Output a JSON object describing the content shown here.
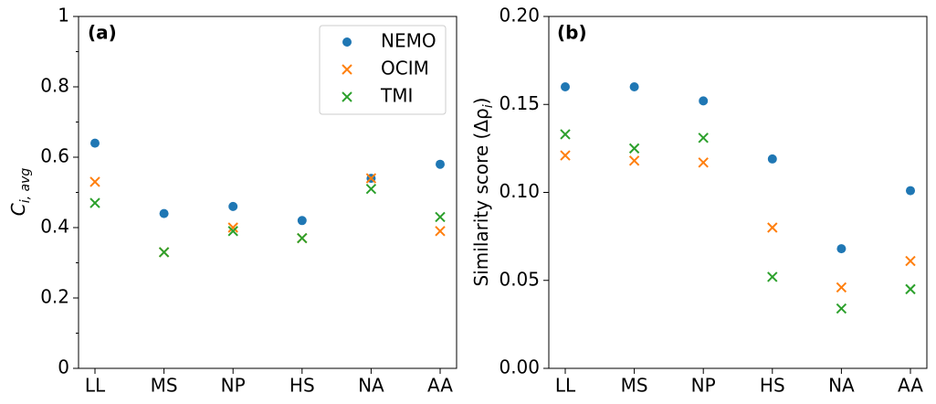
{
  "legend": {
    "entries": [
      {
        "name": "NEMO",
        "color": "#1f77b4",
        "marker": "circle"
      },
      {
        "name": "OCIM",
        "color": "#ff7f0e",
        "marker": "x"
      },
      {
        "name": "TMI",
        "color": "#2ca02c",
        "marker": "x"
      }
    ],
    "placement": "top-right of panel (a)"
  },
  "chart_data": [
    {
      "type": "scatter",
      "panel": "(a)",
      "categories": [
        "LL",
        "MS",
        "NP",
        "HS",
        "NA",
        "AA"
      ],
      "ylabel_main": "C",
      "ylabel_sub": "i, avg",
      "ylim": [
        0,
        1
      ],
      "yticks": [
        "0",
        "0.2",
        "0.4",
        "0.6",
        "0.8",
        "1"
      ],
      "ytick_values": [
        0,
        0.2,
        0.4,
        0.6,
        0.8,
        1
      ],
      "yminor_ticks": [
        0.1,
        0.3,
        0.5,
        0.7,
        0.9
      ],
      "grid": false,
      "series": [
        {
          "name": "NEMO",
          "values": [
            0.64,
            0.44,
            0.46,
            0.42,
            0.54,
            0.58
          ]
        },
        {
          "name": "OCIM",
          "values": [
            0.53,
            0.33,
            0.4,
            0.37,
            0.54,
            0.39
          ]
        },
        {
          "name": "TMI",
          "values": [
            0.47,
            0.33,
            0.39,
            0.37,
            0.51,
            0.43
          ]
        }
      ]
    },
    {
      "type": "scatter",
      "panel": "(b)",
      "categories": [
        "LL",
        "MS",
        "NP",
        "HS",
        "NA",
        "AA"
      ],
      "ylabel_main": "Similarity score (Δρ",
      "ylabel_sub": "i",
      "ylabel_end": ")",
      "ylim": [
        0,
        0.2
      ],
      "yticks": [
        "0.00",
        "0.05",
        "0.10",
        "0.15",
        "0.20"
      ],
      "ytick_values": [
        0,
        0.05,
        0.1,
        0.15,
        0.2
      ],
      "grid": false,
      "series": [
        {
          "name": "NEMO",
          "values": [
            0.16,
            0.16,
            0.152,
            0.119,
            0.068,
            0.101
          ]
        },
        {
          "name": "OCIM",
          "values": [
            0.121,
            0.118,
            0.117,
            0.08,
            0.046,
            0.061
          ]
        },
        {
          "name": "TMI",
          "values": [
            0.133,
            0.125,
            0.131,
            0.052,
            0.034,
            0.045
          ]
        }
      ]
    }
  ]
}
